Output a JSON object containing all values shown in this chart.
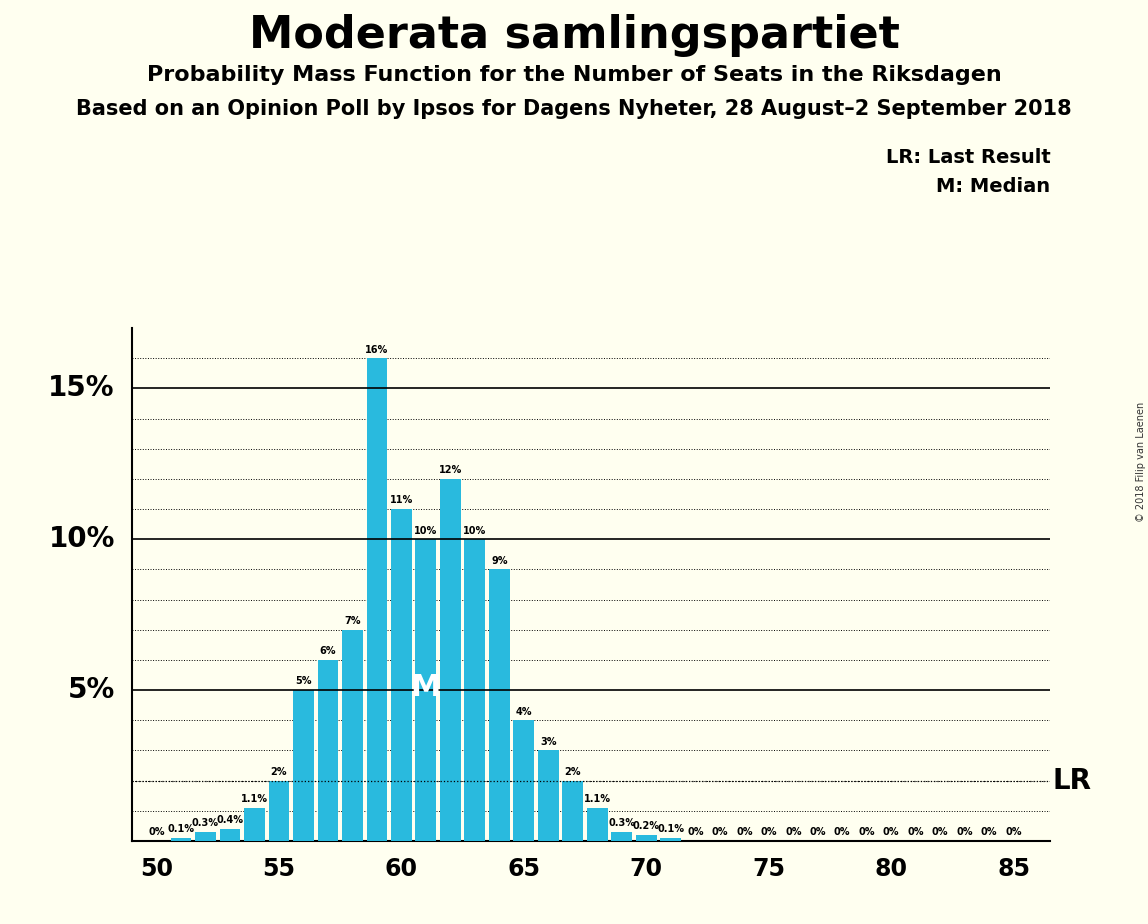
{
  "title": "Moderata samlingspartiet",
  "subtitle1": "Probability Mass Function for the Number of Seats in the Riksdagen",
  "subtitle2": "Based on an Opinion Poll by Ipsos for Dagens Nyheter, 28 August–2 September 2018",
  "copyright": "© 2018 Filip van Laenen",
  "legend_lr": "LR: Last Result",
  "legend_m": "M: Median",
  "bar_color": "#29BADE",
  "background_color": "#FFFFF0",
  "seats": [
    50,
    51,
    52,
    53,
    54,
    55,
    56,
    57,
    58,
    59,
    60,
    61,
    62,
    63,
    64,
    65,
    66,
    67,
    68,
    69,
    70,
    71,
    72,
    73,
    74,
    75,
    76,
    77,
    78,
    79,
    80,
    81,
    82,
    83,
    84,
    85
  ],
  "values": [
    0.0,
    0.1,
    0.3,
    0.4,
    1.1,
    2.0,
    5.0,
    6.0,
    7.0,
    16.0,
    11.0,
    10.0,
    12.0,
    10.0,
    9.0,
    4.0,
    3.0,
    2.0,
    1.1,
    0.3,
    0.2,
    0.1,
    0.0,
    0.0,
    0.0,
    0.0,
    0.0,
    0.0,
    0.0,
    0.0,
    0.0,
    0.0,
    0.0,
    0.0,
    0.0,
    0.0
  ],
  "labels": [
    "0%",
    "0.1%",
    "0.3%",
    "0.4%",
    "1.1%",
    "2%",
    "5%",
    "6%",
    "7%",
    "16%",
    "11%",
    "10%",
    "12%",
    "10%",
    "9%",
    "4%",
    "3%",
    "2%",
    "1.1%",
    "0.3%",
    "0.2%",
    "0.1%",
    "0%",
    "0%",
    "0%",
    "0%",
    "0%",
    "0%",
    "0%",
    "0%",
    "0%",
    "0%",
    "0%",
    "0%",
    "0%",
    "0%"
  ],
  "median_seat": 61,
  "lr_value": 2.0,
  "ylim_max": 17.0,
  "major_yticks": [
    5,
    10,
    15
  ],
  "minor_yticks": [
    1,
    2,
    3,
    4,
    6,
    7,
    8,
    9,
    11,
    12,
    13,
    14,
    16
  ],
  "xticks": [
    50,
    55,
    60,
    65,
    70,
    75,
    80,
    85
  ],
  "xmin": 49.0,
  "xmax": 86.5
}
